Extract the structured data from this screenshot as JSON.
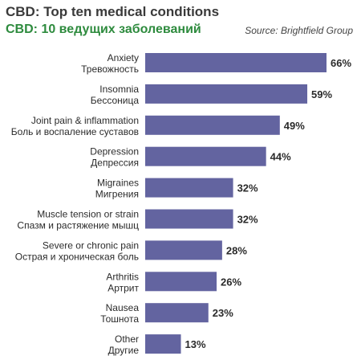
{
  "header": {
    "title": "CBD: Top ten medical conditions",
    "subtitle": "CBD: 10 ведущих заболеваний",
    "source": "Source: Brightfield Group"
  },
  "colors": {
    "bar": "#6364a0",
    "title": "#3a3a3a",
    "subtitle": "#2e8b3e"
  },
  "chart_data": {
    "type": "bar",
    "orientation": "horizontal",
    "title": "CBD: Top ten medical conditions",
    "subtitle": "CBD: 10 ведущих заболеваний",
    "categories": [
      "Anxiety",
      "Insomnia",
      "Joint pain & inflammation",
      "Depression",
      "Migraines",
      "Muscle tension or strain",
      "Severe or chronic pain",
      "Arthritis",
      "Nausea",
      "Other"
    ],
    "categories_ru": [
      "Тревожность",
      "Бессоница",
      "Боль и воспаление суставов",
      "Депрессия",
      "Мигрения",
      "Спазм и растяжение мышц",
      "Острая и хроническая боль",
      "Артрит",
      "Тошнота",
      "Другие"
    ],
    "values": [
      66,
      59,
      49,
      44,
      32,
      32,
      28,
      26,
      23,
      13
    ],
    "value_labels": [
      "66%",
      "59%",
      "49%",
      "44%",
      "32%",
      "32%",
      "28%",
      "26%",
      "23%",
      "13%"
    ],
    "unit": "%",
    "xlim": [
      0,
      66
    ],
    "grid": false,
    "legend": "none"
  }
}
